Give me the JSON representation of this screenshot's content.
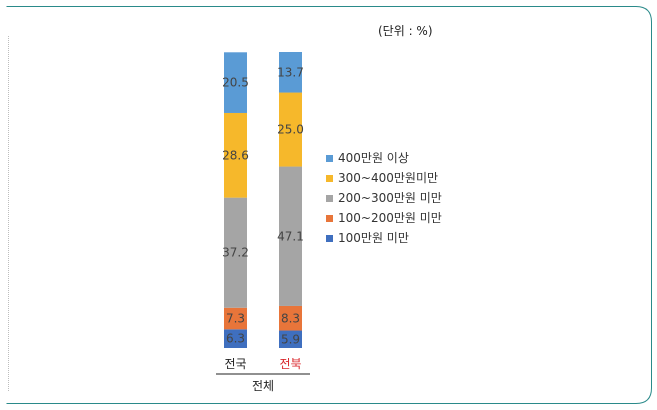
{
  "unit_label": "(단위 : %)",
  "chart_data": {
    "type": "bar",
    "stacked": true,
    "categories": [
      "전국",
      "전북"
    ],
    "category_colors": [
      "#222222",
      "#d9262b"
    ],
    "group_label": "전체",
    "series": [
      {
        "name": "100만원 미만",
        "color": "#3f6fbf",
        "values": [
          6.3,
          5.9
        ]
      },
      {
        "name": "100~200만원 미만",
        "color": "#e8753a",
        "values": [
          7.3,
          8.3
        ]
      },
      {
        "name": "200~300만원 미만",
        "color": "#a5a5a5",
        "values": [
          37.2,
          47.1
        ]
      },
      {
        "name": "300~400만원미만",
        "color": "#f6b82b",
        "values": [
          28.6,
          25.0
        ]
      },
      {
        "name": "400만원 이상",
        "color": "#5a9bd5",
        "values": [
          20.5,
          13.7
        ]
      }
    ],
    "legend_order": [
      4,
      3,
      2,
      1,
      0
    ],
    "ylim": [
      0,
      100
    ],
    "grid": false,
    "legend_position": "right"
  }
}
